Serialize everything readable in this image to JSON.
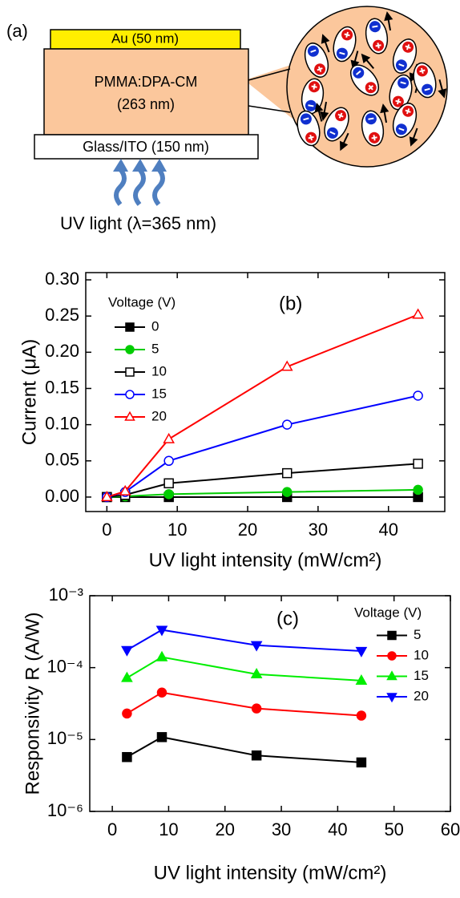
{
  "diagram": {
    "panel": "(a)",
    "top_layer": "Au (50 nm)",
    "middle_layer": [
      "PMMA:DPA-CM",
      "(263 nm)"
    ],
    "bottom_layer": "Glass/ITO (150 nm)",
    "light": "UV light (λ=365 nm)"
  },
  "chart_data": [
    {
      "type": "line",
      "annotation": "(b)",
      "xlabel": "UV light intensity (mW/cm²)",
      "ylabel": "Current (μA)",
      "legend_title": "Voltage (V)",
      "legend": "upper left",
      "x": [
        0,
        2.6,
        8.8,
        25.6,
        44.2
      ],
      "xlim": [
        -3,
        48
      ],
      "xticks": [
        0,
        10,
        20,
        30,
        40
      ],
      "ylim": [
        -0.02,
        0.31
      ],
      "yticks": [
        {
          "value": 0,
          "label": "0.00"
        },
        {
          "value": 0.05,
          "label": "0.05"
        },
        {
          "value": 0.1,
          "label": "0.10"
        },
        {
          "value": 0.15,
          "label": "0.15"
        },
        {
          "value": 0.2,
          "label": "0.20"
        },
        {
          "value": 0.25,
          "label": "0.25"
        },
        {
          "value": 0.3,
          "label": "0.30"
        }
      ],
      "series": [
        {
          "name": "0",
          "color": "#000000",
          "marker": "square",
          "filled": true,
          "values": [
            0,
            0,
            0,
            0,
            0
          ]
        },
        {
          "name": "5",
          "color": "#00cc00",
          "marker": "circle",
          "filled": true,
          "values": [
            0,
            0.001,
            0.004,
            0.007,
            0.01
          ]
        },
        {
          "name": "10",
          "color": "#000000",
          "marker": "square",
          "filled": false,
          "values": [
            0,
            0.003,
            0.019,
            0.033,
            0.046
          ]
        },
        {
          "name": "15",
          "color": "#0000ff",
          "marker": "circle",
          "filled": false,
          "values": [
            0,
            0.007,
            0.05,
            0.1,
            0.14
          ]
        },
        {
          "name": "20",
          "color": "#ff0000",
          "marker": "triangle",
          "filled": false,
          "values": [
            0,
            0.008,
            0.08,
            0.18,
            0.252
          ]
        }
      ]
    },
    {
      "type": "line",
      "annotation": "(c)",
      "xlabel": "UV light intensity (mW/cm²)",
      "ylabel": "Responsivity R (A/W)",
      "legend_title": "Voltage (V)",
      "legend": "upper right",
      "yscale": "log",
      "x": [
        2.6,
        8.8,
        25.6,
        44.2
      ],
      "xlim": [
        -4,
        60
      ],
      "xticks": [
        0,
        10,
        20,
        30,
        40,
        50,
        60
      ],
      "ylim": [
        1e-06,
        0.001
      ],
      "yticks": [
        {
          "value": 1e-06,
          "label": "10⁻⁶"
        },
        {
          "value": 1e-05,
          "label": "10⁻⁵"
        },
        {
          "value": 0.0001,
          "label": "10⁻⁴"
        },
        {
          "value": 0.001,
          "label": "10⁻³"
        }
      ],
      "series": [
        {
          "name": "5",
          "color": "#000000",
          "marker": "square",
          "filled": true,
          "values": [
            5.7e-06,
            1.08e-05,
            6e-06,
            4.8e-06
          ]
        },
        {
          "name": "10",
          "color": "#ff0000",
          "marker": "circle",
          "filled": true,
          "values": [
            2.3e-05,
            4.5e-05,
            2.7e-05,
            2.15e-05
          ]
        },
        {
          "name": "15",
          "color": "#00ee00",
          "marker": "triangle",
          "filled": true,
          "values": [
            7.2e-05,
            0.00014,
            8.1e-05,
            6.6e-05
          ]
        },
        {
          "name": "20",
          "color": "#0000ff",
          "marker": "triangle-down",
          "filled": true,
          "values": [
            0.000175,
            0.000335,
            0.000205,
            0.00017
          ]
        }
      ]
    }
  ]
}
